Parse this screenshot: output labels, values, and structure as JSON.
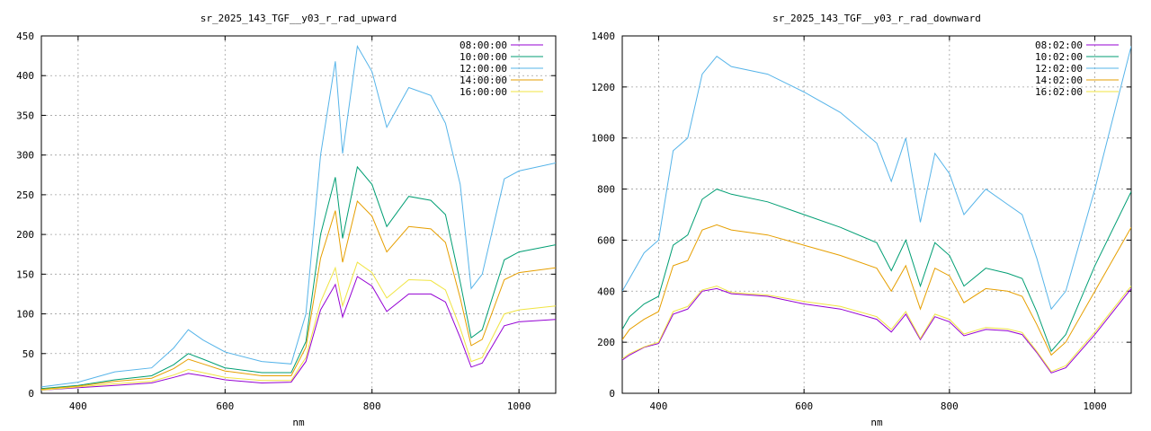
{
  "chart_data": [
    {
      "type": "line",
      "title": "sr_2025_143_TGF__y03_r_rad_upward",
      "xlabel": "nm",
      "ylabel": "",
      "xlim": [
        350,
        1050
      ],
      "ylim": [
        0,
        450
      ],
      "xticks": [
        400,
        600,
        800,
        1000
      ],
      "yticks": [
        0,
        50,
        100,
        150,
        200,
        250,
        300,
        350,
        400,
        450
      ],
      "grid": true,
      "legend_position": "top-right",
      "series": [
        {
          "name": "08:00:00",
          "color": "#9400d3",
          "x": [
            350,
            400,
            450,
            500,
            530,
            550,
            570,
            600,
            650,
            690,
            710,
            730,
            750,
            760,
            780,
            800,
            820,
            850,
            880,
            900,
            920,
            935,
            950,
            980,
            1000,
            1050
          ],
          "y": [
            4,
            7,
            10,
            13,
            20,
            25,
            22,
            17,
            13,
            14,
            40,
            105,
            137,
            96,
            147,
            135,
            103,
            125,
            125,
            115,
            70,
            33,
            38,
            85,
            90,
            93
          ]
        },
        {
          "name": "10:00:00",
          "color": "#009e73",
          "x": [
            350,
            400,
            450,
            500,
            530,
            550,
            570,
            600,
            650,
            690,
            710,
            730,
            750,
            760,
            780,
            800,
            820,
            850,
            880,
            900,
            920,
            935,
            950,
            980,
            1000,
            1050
          ],
          "y": [
            6,
            10,
            17,
            22,
            36,
            50,
            43,
            32,
            26,
            26,
            65,
            200,
            272,
            195,
            285,
            263,
            210,
            248,
            243,
            225,
            140,
            70,
            80,
            168,
            178,
            187
          ]
        },
        {
          "name": "12:00:00",
          "color": "#56b4e9",
          "x": [
            350,
            400,
            450,
            500,
            530,
            550,
            570,
            600,
            650,
            690,
            710,
            730,
            750,
            760,
            780,
            800,
            820,
            850,
            880,
            900,
            920,
            935,
            950,
            980,
            1000,
            1050
          ],
          "y": [
            8,
            14,
            27,
            32,
            57,
            80,
            67,
            52,
            40,
            37,
            100,
            300,
            418,
            302,
            437,
            405,
            335,
            385,
            375,
            340,
            263,
            132,
            150,
            270,
            280,
            290
          ]
        },
        {
          "name": "14:00:00",
          "color": "#e69f00",
          "x": [
            350,
            400,
            450,
            500,
            530,
            550,
            570,
            600,
            650,
            690,
            710,
            730,
            750,
            760,
            780,
            800,
            820,
            850,
            880,
            900,
            920,
            935,
            950,
            980,
            1000,
            1050
          ],
          "y": [
            5,
            9,
            15,
            19,
            31,
            43,
            37,
            28,
            22,
            22,
            58,
            170,
            230,
            165,
            242,
            223,
            178,
            210,
            207,
            190,
            120,
            60,
            68,
            143,
            152,
            158
          ]
        },
        {
          "name": "16:00:00",
          "color": "#f0e442",
          "x": [
            350,
            400,
            450,
            500,
            530,
            550,
            570,
            600,
            650,
            690,
            710,
            730,
            750,
            760,
            780,
            800,
            820,
            850,
            880,
            900,
            920,
            935,
            950,
            980,
            1000,
            1050
          ],
          "y": [
            4,
            8,
            12,
            15,
            23,
            30,
            26,
            20,
            16,
            16,
            45,
            115,
            158,
            110,
            165,
            152,
            120,
            143,
            142,
            130,
            82,
            40,
            45,
            100,
            105,
            110
          ]
        }
      ]
    },
    {
      "type": "line",
      "title": "sr_2025_143_TGF__y03_r_rad_downward",
      "xlabel": "nm",
      "ylabel": "",
      "xlim": [
        350,
        1050
      ],
      "ylim": [
        0,
        1400
      ],
      "xticks": [
        400,
        600,
        800,
        1000
      ],
      "yticks": [
        0,
        200,
        400,
        600,
        800,
        1000,
        1200,
        1400
      ],
      "grid": true,
      "legend_position": "top-right",
      "series": [
        {
          "name": "08:02:00",
          "color": "#9400d3",
          "x": [
            350,
            360,
            380,
            400,
            420,
            440,
            460,
            480,
            500,
            550,
            600,
            650,
            700,
            720,
            740,
            760,
            780,
            800,
            820,
            850,
            880,
            900,
            920,
            940,
            960,
            1000,
            1050
          ],
          "y": [
            130,
            150,
            180,
            195,
            310,
            330,
            400,
            410,
            390,
            380,
            350,
            330,
            290,
            240,
            310,
            210,
            300,
            280,
            225,
            250,
            245,
            230,
            160,
            80,
            100,
            230,
            410
          ]
        },
        {
          "name": "10:02:00",
          "color": "#009e73",
          "x": [
            350,
            360,
            380,
            400,
            420,
            440,
            460,
            480,
            500,
            550,
            600,
            650,
            700,
            720,
            740,
            760,
            780,
            800,
            820,
            850,
            880,
            900,
            920,
            940,
            960,
            1000,
            1050
          ],
          "y": [
            250,
            300,
            350,
            380,
            580,
            620,
            760,
            800,
            780,
            750,
            700,
            650,
            590,
            480,
            600,
            420,
            590,
            540,
            420,
            490,
            470,
            450,
            320,
            165,
            230,
            500,
            790
          ]
        },
        {
          "name": "12:02:00",
          "color": "#56b4e9",
          "x": [
            350,
            360,
            380,
            400,
            420,
            440,
            460,
            480,
            500,
            550,
            600,
            650,
            700,
            720,
            740,
            760,
            780,
            800,
            820,
            850,
            880,
            900,
            920,
            940,
            960,
            1000,
            1050
          ],
          "y": [
            400,
            450,
            550,
            600,
            950,
            1000,
            1250,
            1320,
            1280,
            1250,
            1180,
            1100,
            980,
            830,
            1000,
            670,
            940,
            860,
            700,
            800,
            740,
            700,
            530,
            330,
            400,
            800,
            1360
          ]
        },
        {
          "name": "14:02:00",
          "color": "#e69f00",
          "x": [
            350,
            360,
            380,
            400,
            420,
            440,
            460,
            480,
            500,
            550,
            600,
            650,
            700,
            720,
            740,
            760,
            780,
            800,
            820,
            850,
            880,
            900,
            920,
            940,
            960,
            1000,
            1050
          ],
          "y": [
            210,
            250,
            290,
            320,
            500,
            520,
            640,
            660,
            640,
            620,
            580,
            540,
            490,
            400,
            500,
            330,
            490,
            460,
            355,
            410,
            400,
            380,
            270,
            150,
            200,
            400,
            650
          ]
        },
        {
          "name": "16:02:00",
          "color": "#f0e442",
          "x": [
            350,
            360,
            380,
            400,
            420,
            440,
            460,
            480,
            500,
            550,
            600,
            650,
            700,
            720,
            740,
            760,
            780,
            800,
            820,
            850,
            880,
            900,
            920,
            940,
            960,
            1000,
            1050
          ],
          "y": [
            135,
            155,
            182,
            200,
            320,
            340,
            405,
            420,
            395,
            385,
            360,
            340,
            300,
            250,
            320,
            215,
            310,
            290,
            232,
            258,
            252,
            238,
            165,
            85,
            108,
            240,
            420
          ]
        }
      ]
    }
  ]
}
